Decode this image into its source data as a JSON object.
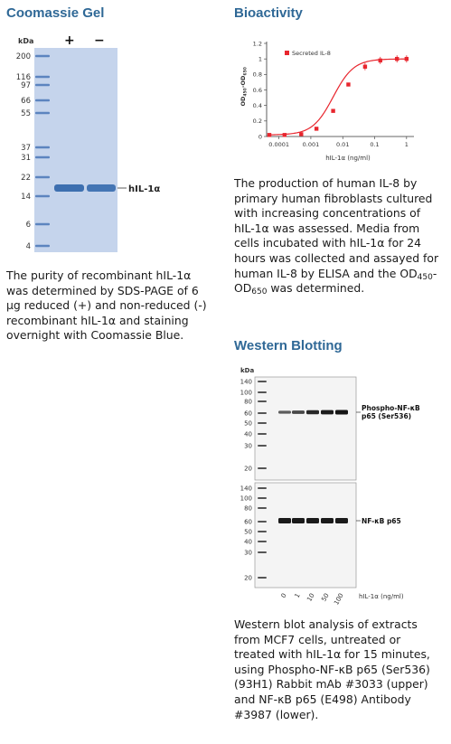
{
  "coomassie": {
    "title": "Coomassie Gel",
    "kda_label": "kDa",
    "lane_labels": [
      "+",
      "−"
    ],
    "markers": [
      "200",
      "116",
      "97",
      "66",
      "55",
      "37",
      "31",
      "22",
      "14",
      "6",
      "4"
    ],
    "band_label": "hIL-1α",
    "caption": "The purity of recombinant hIL-1α was determined by SDS-PAGE of 6 µg reduced (+) and non-reduced (-) recombinant hIL-1α and staining overnight with Coomassie Blue.",
    "gel_color": "#c5d4ec"
  },
  "bioactivity": {
    "title": "Bioactivity",
    "caption_main": "The production of human IL-8 by primary human fibroblasts cultured with increasing concentrations of hIL-1α was assessed. Media from cells incubated with hIL-1α for 24 hours was collected and assayed for human IL-8 by ELISA and the ",
    "caption_od1": "OD",
    "caption_sub1": "450",
    "caption_dash": "-OD",
    "caption_sub2": "650",
    "caption_end": " was determined.",
    "chart_data": {
      "type": "line",
      "legend": "Secreted IL-8",
      "legend_position": "top-left",
      "ylabel": "OD450-OD650",
      "xlabel": "hIL-1α (ng/ml)",
      "x_scale": "log",
      "xlim": [
        5e-05,
        1.4
      ],
      "ylim": [
        0,
        1.2
      ],
      "y_ticks": [
        "0",
        "0.2",
        "0.4",
        "0.6",
        "0.8",
        "1",
        "1.2"
      ],
      "x_ticks": [
        "0.0001",
        "0.001",
        "0.01",
        "0.1",
        "1"
      ],
      "series": [
        {
          "name": "Secreted IL-8",
          "x": [
            5e-05,
            0.00015,
            0.0005,
            0.0015,
            0.005,
            0.015,
            0.05,
            0.15,
            0.5,
            1
          ],
          "y": [
            0.02,
            0.02,
            0.03,
            0.1,
            0.33,
            0.67,
            0.9,
            0.98,
            1.0,
            1.0
          ]
        }
      ],
      "color": "#e8262e"
    }
  },
  "western": {
    "title": "Western Blotting",
    "kda_label": "kDa",
    "upper_markers": [
      "140",
      "100",
      "80",
      "60",
      "50",
      "40",
      "30",
      "20"
    ],
    "lower_markers": [
      "140",
      "100",
      "80",
      "60",
      "50",
      "40",
      "30",
      "20"
    ],
    "upper_label_1": "Phospho-NF-κB",
    "upper_label_2": "p65 (Ser536)",
    "lower_label": "NF-κB p65",
    "lanes": [
      "0",
      "1",
      "10",
      "50",
      "100"
    ],
    "unit_label": "hIL-1α (ng/ml)",
    "upper_band_intensity": [
      0.45,
      0.6,
      0.85,
      0.95,
      1.0
    ],
    "caption": "Western blot analysis of extracts from MCF7 cells, untreated or treated with hIL-1α for 15 minutes, using Phospho-NF-κB p65 (Ser536) (93H1) Rabbit mAb #3033 (upper) and NF-κB p65 (E498) Antibody #3987 (lower)."
  }
}
